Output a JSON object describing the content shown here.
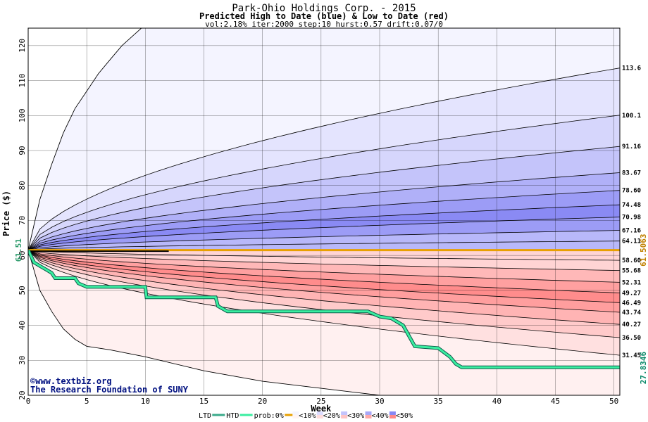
{
  "chart_data": {
    "type": "area",
    "title": "Park-Ohio Holdings Corp. - 2015",
    "subtitle": "Predicted High to Date (blue) &  Low to Date (red)",
    "params": "vol:2.18% iter:2000 step:10 hurst:0.57 drift:0.07/0",
    "xlabel": "Week",
    "ylabel": "Price ($)",
    "xlim": [
      0,
      50.5
    ],
    "ylim": [
      20,
      125
    ],
    "x_ticks": [
      0,
      5,
      10,
      15,
      20,
      25,
      30,
      35,
      40,
      45,
      50
    ],
    "y_ticks": [
      20,
      30,
      40,
      50,
      60,
      70,
      80,
      90,
      100,
      110,
      120
    ],
    "start_price": 61.51,
    "start_label": "61.51",
    "grid": true,
    "high_band_end_labels": [
      "113.6",
      "100.1",
      "91.16",
      "83.67",
      "78.60",
      "74.48",
      "70.98",
      "67.16",
      "64.11"
    ],
    "low_band_end_labels": [
      "58.60",
      "55.68",
      "52.31",
      "49.27",
      "46.49",
      "43.74",
      "40.27",
      "36.50",
      "31.45"
    ],
    "high_band_end_values": [
      113.6,
      100.1,
      91.16,
      83.67,
      78.6,
      74.48,
      70.98,
      67.16,
      64.11
    ],
    "low_band_end_values": [
      58.6,
      55.68,
      52.31,
      49.27,
      46.49,
      43.74,
      40.27,
      36.5,
      31.45
    ],
    "high_envelope": [
      [
        0,
        61.51
      ],
      [
        1,
        76
      ],
      [
        2,
        86
      ],
      [
        3,
        95
      ],
      [
        4,
        102
      ],
      [
        5,
        107
      ],
      [
        6,
        112
      ],
      [
        7,
        116
      ],
      [
        8,
        120
      ],
      [
        9,
        123
      ],
      [
        10,
        126
      ]
    ],
    "low_envelope": [
      [
        0,
        61.51
      ],
      [
        1,
        50
      ],
      [
        2,
        44
      ],
      [
        3,
        39
      ],
      [
        4,
        36
      ],
      [
        5,
        34
      ],
      [
        7,
        33
      ],
      [
        10,
        31
      ],
      [
        15,
        27
      ],
      [
        20,
        24
      ],
      [
        25,
        22
      ],
      [
        30,
        20
      ]
    ],
    "orange_line": 61.5063,
    "orange_label": "61.5063",
    "htd_line": 61.2,
    "htd_black_segment_end": 12,
    "ltd_series": [
      [
        0,
        61.51
      ],
      [
        0.5,
        58
      ],
      [
        1,
        57
      ],
      [
        1.5,
        56
      ],
      [
        2,
        55
      ],
      [
        2.3,
        53.5
      ],
      [
        4,
        53.5
      ],
      [
        4.3,
        52
      ],
      [
        5,
        51
      ],
      [
        6,
        51
      ],
      [
        10,
        51
      ],
      [
        10.1,
        48
      ],
      [
        16,
        48
      ],
      [
        16.2,
        45.5
      ],
      [
        17,
        44
      ],
      [
        29,
        44
      ],
      [
        30,
        42.5
      ],
      [
        31,
        42
      ],
      [
        32,
        40
      ],
      [
        33,
        34
      ],
      [
        35,
        33.5
      ],
      [
        36,
        31
      ],
      [
        36.5,
        29
      ],
      [
        37,
        28
      ],
      [
        50.5,
        28
      ]
    ],
    "ltd_end_value": 27.8346,
    "ltd_end_label": "27.8346",
    "legend": [
      {
        "label": "LTD",
        "kind": "line",
        "color": "#3aaa8a"
      },
      {
        "label": "HTD",
        "kind": "line",
        "color": "#3aeea0"
      },
      {
        "label": "prob:0%",
        "kind": "line",
        "color": "#e8a000"
      },
      {
        "label": "<10%",
        "kind": "swatch",
        "color": "#f4f4ff",
        "color2": "#fff4f4"
      },
      {
        "label": "<20%",
        "kind": "swatch",
        "color": "#dcdcff",
        "color2": "#ffdcdc"
      },
      {
        "label": "<30%",
        "kind": "swatch",
        "color": "#c4c4fc",
        "color2": "#ffc4c4"
      },
      {
        "label": "<40%",
        "kind": "swatch",
        "color": "#a8a8f8",
        "color2": "#ffa8a8"
      },
      {
        "label": "<50%",
        "kind": "swatch",
        "color": "#8888f4",
        "color2": "#ff8888"
      }
    ],
    "watermark": [
      "©www.textbiz.org",
      "The Research Foundation of SUNY"
    ],
    "colors": {
      "high_bands": [
        "#f4f4ff",
        "#e4e4fe",
        "#d6d6fc",
        "#c4c4fa",
        "#b0b0f8",
        "#9c9cf6",
        "#8a8af4",
        "#9c9cf6",
        "#b8b8fa"
      ],
      "low_bands": [
        "#fff0f0",
        "#ffe0e0",
        "#ffcaca",
        "#ffb4b4",
        "#ff9e9e",
        "#ff8c8c",
        "#ffa0a0",
        "#ffb8b8",
        "#ffd4d4"
      ],
      "ltd_line": "#3aeea0",
      "ltd_edge": "#0a5a4a",
      "orange": "#e8a000",
      "start_label": "#2a9a6a",
      "orange_label": "#c08000",
      "ltd_end_label": "#0a8a6a",
      "watermark": "#001080"
    }
  }
}
